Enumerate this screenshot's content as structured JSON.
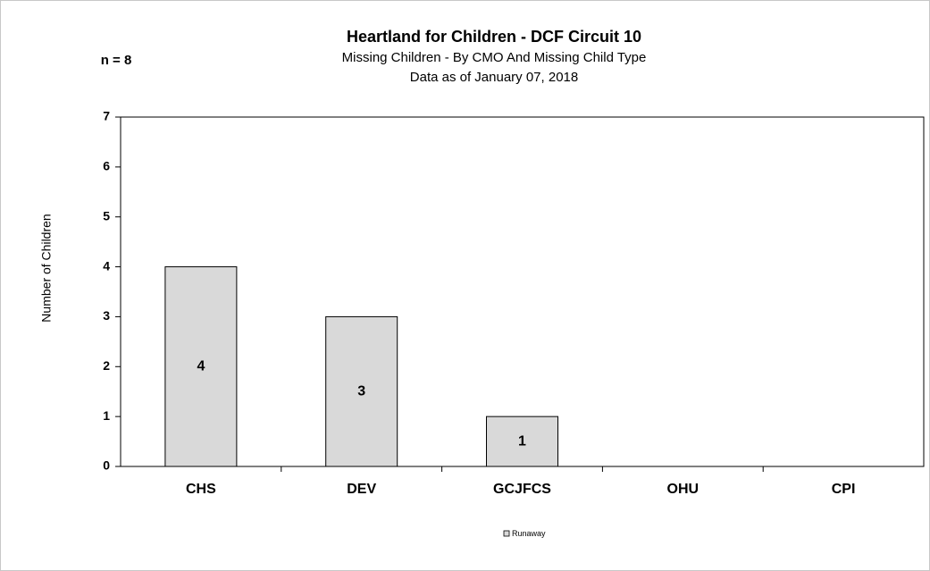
{
  "chart_data": {
    "type": "bar",
    "title": "Heartland for Children - DCF Circuit 10",
    "subtitle": "Missing Children - By CMO And Missing Child Type",
    "note": "Data as of January 07, 2018",
    "annotation": "n = 8",
    "y_label": "Number of Children",
    "categories": [
      "CHS",
      "DEV",
      "GCJFCS",
      "OHU",
      "CPI"
    ],
    "series": [
      {
        "name": "Runaway",
        "color": "#d9d9d9",
        "values": [
          4,
          3,
          1,
          0,
          0
        ]
      }
    ],
    "ylim": [
      0,
      7
    ],
    "yticks": [
      0,
      1,
      2,
      3,
      4,
      5,
      6,
      7
    ],
    "grid": false,
    "legend": "bottom"
  }
}
